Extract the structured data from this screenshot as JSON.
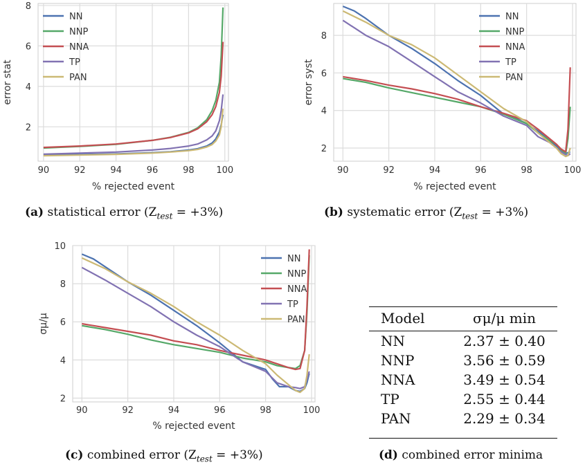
{
  "captions": {
    "a": {
      "tag": "(a)",
      "text": "statistical error (Z",
      "sub": "test",
      "tail": " = +3%)"
    },
    "b": {
      "tag": "(b)",
      "text": "systematic error (Z",
      "sub": "test",
      "tail": " = +3%)"
    },
    "c": {
      "tag": "(c)",
      "text": "combined error (Z",
      "sub": "test",
      "tail": " = +3%)"
    },
    "d": {
      "tag": "(d)",
      "text": "combined error minima"
    }
  },
  "colors": {
    "NN": "#4c72b0",
    "NNP": "#55a868",
    "NNA": "#c44e52",
    "TP": "#8172b2",
    "PAN": "#ccb974",
    "grid": "#dcdcdc",
    "axis_bg": "#ffffff"
  },
  "table": {
    "headers": [
      "Model",
      "σμ/μ min"
    ],
    "rows": [
      [
        "NN",
        "2.37 ± 0.40"
      ],
      [
        "NNP",
        "3.56 ± 0.59"
      ],
      [
        "NNA",
        "3.49 ± 0.54"
      ],
      [
        "TP",
        "2.55 ± 0.44"
      ],
      [
        "PAN",
        "2.29 ± 0.34"
      ]
    ]
  },
  "chart_data": [
    {
      "type": "line",
      "xlabel": "% rejected event",
      "ylabel": "error stat",
      "xlim": [
        89.7,
        100.2
      ],
      "ylim": [
        0.3,
        8.1
      ],
      "xticks": [
        90,
        92,
        94,
        96,
        98,
        100
      ],
      "yticks": [
        2,
        4,
        6,
        8
      ],
      "legend": "top-left",
      "grid": true,
      "series": [
        {
          "name": "NN",
          "x": [
            90,
            92,
            94,
            96,
            97,
            98,
            98.5,
            99,
            99.3,
            99.5,
            99.7,
            99.8,
            99.9
          ],
          "y": [
            0.6,
            0.63,
            0.66,
            0.72,
            0.77,
            0.85,
            0.92,
            1.05,
            1.2,
            1.4,
            1.75,
            2.1,
            2.6
          ]
        },
        {
          "name": "NNP",
          "x": [
            90,
            92,
            94,
            96,
            97,
            98,
            98.5,
            99,
            99.3,
            99.5,
            99.7,
            99.8,
            99.9
          ],
          "y": [
            0.95,
            1.03,
            1.13,
            1.33,
            1.48,
            1.72,
            1.95,
            2.35,
            2.8,
            3.3,
            4.2,
            5.5,
            7.9
          ]
        },
        {
          "name": "NNA",
          "x": [
            90,
            92,
            94,
            96,
            97,
            98,
            98.5,
            99,
            99.3,
            99.5,
            99.7,
            99.8,
            99.9
          ],
          "y": [
            0.98,
            1.05,
            1.15,
            1.33,
            1.47,
            1.7,
            1.9,
            2.25,
            2.6,
            3.0,
            3.7,
            4.5,
            6.2
          ]
        },
        {
          "name": "TP",
          "x": [
            90,
            92,
            94,
            96,
            97,
            98,
            98.5,
            99,
            99.3,
            99.5,
            99.7,
            99.8,
            99.9
          ],
          "y": [
            0.65,
            0.7,
            0.75,
            0.85,
            0.93,
            1.05,
            1.15,
            1.35,
            1.55,
            1.8,
            2.3,
            2.8,
            3.6
          ]
        },
        {
          "name": "PAN",
          "x": [
            90,
            92,
            94,
            96,
            97,
            98,
            98.5,
            99,
            99.3,
            99.5,
            99.7,
            99.8,
            99.9
          ],
          "y": [
            0.57,
            0.6,
            0.64,
            0.7,
            0.75,
            0.82,
            0.88,
            1.0,
            1.12,
            1.3,
            1.6,
            2.0,
            2.9
          ]
        }
      ]
    },
    {
      "type": "line",
      "xlabel": "% rejected event",
      "ylabel": "error syst",
      "xlim": [
        89.6,
        100.15
      ],
      "ylim": [
        1.3,
        9.7
      ],
      "xticks": [
        90,
        92,
        94,
        96,
        98,
        100
      ],
      "yticks": [
        2,
        4,
        6,
        8
      ],
      "legend": "top-right",
      "grid": true,
      "series": [
        {
          "name": "NN",
          "x": [
            90,
            90.5,
            91,
            92,
            93,
            94,
            95,
            96,
            96.5,
            97,
            97.5,
            98,
            98.5,
            99,
            99.3,
            99.5,
            99.7,
            99.8,
            99.9
          ],
          "y": [
            9.55,
            9.3,
            8.9,
            8.0,
            7.3,
            6.5,
            5.6,
            4.8,
            4.3,
            3.8,
            3.6,
            3.3,
            2.9,
            2.4,
            2.1,
            1.8,
            1.7,
            1.75,
            1.8
          ]
        },
        {
          "name": "NNP",
          "x": [
            90,
            91,
            92,
            93,
            94,
            95,
            96,
            97,
            98,
            98.5,
            99,
            99.3,
            99.5,
            99.7,
            99.8,
            99.9
          ],
          "y": [
            5.7,
            5.5,
            5.2,
            4.95,
            4.7,
            4.45,
            4.2,
            3.8,
            3.3,
            2.8,
            2.4,
            2.2,
            1.9,
            1.7,
            2.5,
            4.2
          ]
        },
        {
          "name": "NNA",
          "x": [
            90,
            91,
            92,
            93,
            94,
            95,
            96,
            97,
            98,
            98.5,
            99,
            99.3,
            99.5,
            99.7,
            99.8,
            99.9
          ],
          "y": [
            5.8,
            5.6,
            5.35,
            5.15,
            4.9,
            4.6,
            4.2,
            3.85,
            3.45,
            3.0,
            2.5,
            2.2,
            1.95,
            1.8,
            3.0,
            6.3
          ]
        },
        {
          "name": "TP",
          "x": [
            90,
            91,
            92,
            93,
            94,
            95,
            96,
            97,
            98,
            98.5,
            99,
            99.3,
            99.5,
            99.7,
            99.8,
            99.9
          ],
          "y": [
            8.8,
            8.0,
            7.4,
            6.6,
            5.8,
            5.0,
            4.4,
            3.7,
            3.2,
            2.6,
            2.3,
            2.0,
            1.8,
            1.65,
            1.6,
            1.7
          ]
        },
        {
          "name": "PAN",
          "x": [
            90,
            91,
            92,
            93,
            94,
            95,
            96,
            97,
            98,
            98.5,
            99,
            99.3,
            99.5,
            99.7,
            99.8,
            99.9
          ],
          "y": [
            9.3,
            8.7,
            8.0,
            7.5,
            6.8,
            5.9,
            5.0,
            4.1,
            3.4,
            2.8,
            2.3,
            2.0,
            1.7,
            1.55,
            1.6,
            2.0
          ]
        }
      ]
    },
    {
      "type": "line",
      "xlabel": "% rejected event",
      "ylabel": "σμ/μ",
      "xlim": [
        89.6,
        100.15
      ],
      "ylim": [
        1.8,
        10.0
      ],
      "xticks": [
        90,
        92,
        94,
        96,
        98,
        100
      ],
      "yticks": [
        2,
        4,
        6,
        8,
        10
      ],
      "legend": "top-right",
      "grid": true,
      "series": [
        {
          "name": "NN",
          "x": [
            90,
            90.5,
            91,
            92,
            93,
            94,
            95,
            96,
            96.5,
            97,
            97.5,
            98,
            98.3,
            98.6,
            99,
            99.3,
            99.5,
            99.7,
            99.8,
            99.9
          ],
          "y": [
            9.55,
            9.3,
            8.9,
            8.1,
            7.4,
            6.6,
            5.8,
            4.9,
            4.4,
            3.9,
            3.7,
            3.5,
            3.0,
            2.6,
            2.6,
            2.4,
            2.35,
            2.5,
            2.8,
            3.3
          ]
        },
        {
          "name": "NNP",
          "x": [
            90,
            91,
            92,
            93,
            94,
            95,
            96,
            97,
            98,
            98.5,
            99,
            99.3,
            99.5,
            99.7,
            99.8,
            99.9
          ],
          "y": [
            5.8,
            5.6,
            5.35,
            5.05,
            4.8,
            4.6,
            4.4,
            4.1,
            3.9,
            3.7,
            3.6,
            3.55,
            3.7,
            4.5,
            6.5,
            9.5
          ]
        },
        {
          "name": "NNA",
          "x": [
            90,
            91,
            92,
            93,
            94,
            95,
            96,
            97,
            98,
            98.5,
            99,
            99.3,
            99.5,
            99.7,
            99.8,
            99.9
          ],
          "y": [
            5.9,
            5.7,
            5.5,
            5.3,
            5.0,
            4.8,
            4.5,
            4.25,
            4.0,
            3.8,
            3.6,
            3.5,
            3.55,
            4.5,
            6.8,
            9.8
          ]
        },
        {
          "name": "TP",
          "x": [
            90,
            91,
            92,
            93,
            94,
            95,
            96,
            97,
            98,
            98.5,
            99,
            99.3,
            99.5,
            99.7,
            99.8,
            99.9
          ],
          "y": [
            8.85,
            8.2,
            7.5,
            6.8,
            6.0,
            5.3,
            4.7,
            3.9,
            3.4,
            2.8,
            2.6,
            2.55,
            2.5,
            2.6,
            3.0,
            3.4
          ]
        },
        {
          "name": "PAN",
          "x": [
            90,
            91,
            92,
            93,
            94,
            95,
            96,
            97,
            98,
            98.5,
            99,
            99.3,
            99.5,
            99.7,
            99.8,
            99.9
          ],
          "y": [
            9.35,
            8.8,
            8.1,
            7.5,
            6.8,
            6.0,
            5.3,
            4.5,
            3.8,
            3.2,
            2.7,
            2.4,
            2.3,
            2.5,
            3.2,
            4.3
          ]
        }
      ]
    }
  ]
}
